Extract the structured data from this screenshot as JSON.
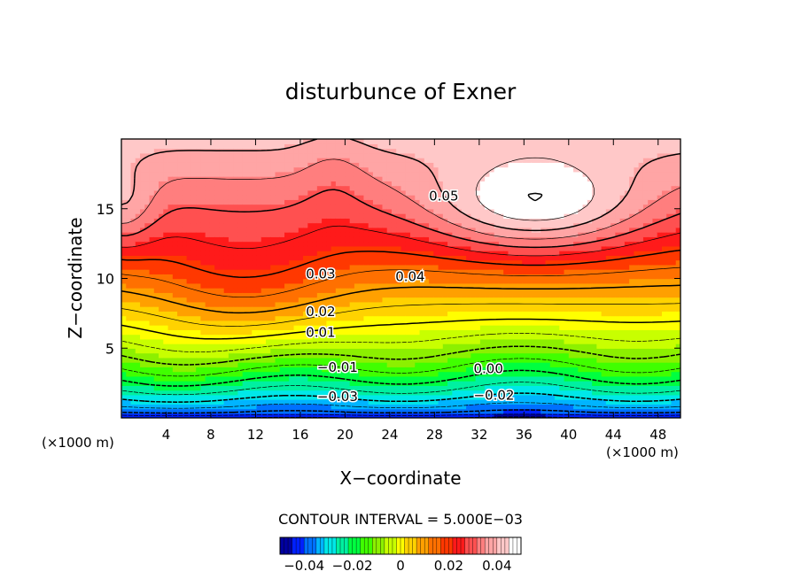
{
  "chart_data": {
    "type": "contour",
    "title": "disturbunce of Exner",
    "xlabel": "X−coordinate",
    "ylabel": "Z−coordinate",
    "x_unit_left": "(×1000 m)",
    "x_unit_right": "(×1000 m)",
    "xlim": [
      0,
      50
    ],
    "ylim": [
      0,
      20
    ],
    "x_ticks": [
      4,
      8,
      12,
      16,
      20,
      24,
      28,
      32,
      36,
      40,
      44,
      48
    ],
    "x_tick_labels": [
      "4",
      "8",
      "12",
      "16",
      "20",
      "24",
      "28",
      "32",
      "36",
      "40",
      "44",
      "48"
    ],
    "y_ticks": [
      5,
      10,
      15
    ],
    "y_tick_labels": [
      "5",
      "10",
      "15"
    ],
    "contour_interval_label": "CONTOUR INTERVAL = 5.000E−03",
    "contour_interval": 0.005,
    "value_range": [
      -0.05,
      0.05
    ],
    "contour_labels": [
      {
        "text": "0.05",
        "x": 27.5,
        "z": 15.6
      },
      {
        "text": "0.04",
        "x": 24.5,
        "z": 9.8
      },
      {
        "text": "0.03",
        "x": 16.5,
        "z": 10.0
      },
      {
        "text": "0.02",
        "x": 16.5,
        "z": 7.3
      },
      {
        "text": "0.01",
        "x": 16.5,
        "z": 5.8
      },
      {
        "text": "−0.01",
        "x": 17.5,
        "z": 3.3
      },
      {
        "text": "−0.03",
        "x": 17.5,
        "z": 1.2
      },
      {
        "text": "0.00",
        "x": 31.5,
        "z": 3.2
      },
      {
        "text": "−0.02",
        "x": 31.5,
        "z": 1.3
      }
    ],
    "colorbar": {
      "ticks": [
        -0.04,
        -0.02,
        0,
        0.02,
        0.04
      ],
      "tick_labels": [
        "−0.04",
        "−0.02",
        "0",
        "0.02",
        "0.04"
      ]
    },
    "colors": [
      "#0000a0",
      "#0020ff",
      "#0070ff",
      "#00b4ff",
      "#00e8e8",
      "#00f0a0",
      "#00ff40",
      "#40ff00",
      "#8cf000",
      "#c8ff00",
      "#ffff00",
      "#ffd200",
      "#ffa000",
      "#ff7000",
      "#ff3800",
      "#ff1a1a",
      "#ff5050",
      "#ff7e7e",
      "#ffa5a5",
      "#ffc8c8",
      "#ffffff"
    ]
  }
}
